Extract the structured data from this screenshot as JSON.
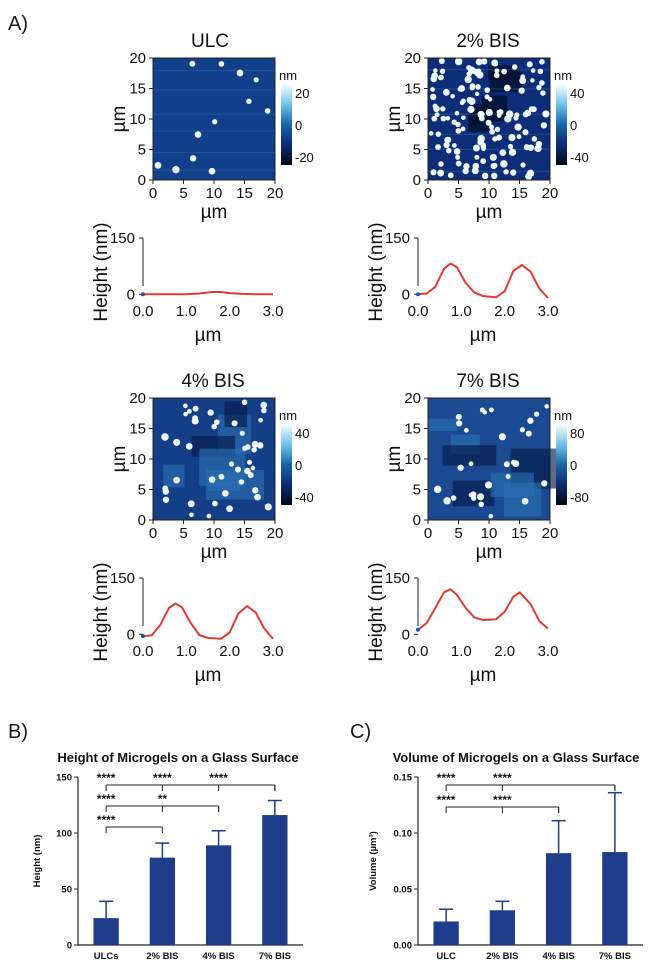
{
  "panel_letters": {
    "a": "A)",
    "b": "B)",
    "c": "C)"
  },
  "afm_panels": [
    {
      "title": "ULC",
      "x_ticks": [
        "0",
        "5",
        "10",
        "15",
        "20"
      ],
      "y_ticks": [
        "0",
        "5",
        "10",
        "15",
        "20"
      ],
      "x_label": "µm",
      "y_label": "µm",
      "colorbar_unit": "nm",
      "colorbar_ticks": [
        "20",
        "0",
        "-20"
      ],
      "profile": {
        "y_label": "Height (nm)",
        "x_label": "µm",
        "x_ticks": [
          "0.0",
          "1.0",
          "2.0",
          "3.0"
        ],
        "y_ticks": [
          "150",
          "0"
        ],
        "x": [
          0,
          0.5,
          1.0,
          1.3,
          1.6,
          1.8,
          2.0,
          2.3,
          2.6,
          3.0
        ],
        "y": [
          0,
          0,
          0,
          2,
          6,
          6,
          3,
          1,
          0,
          0
        ]
      }
    },
    {
      "title": "2% BIS",
      "x_ticks": [
        "0",
        "5",
        "10",
        "15",
        "20"
      ],
      "y_ticks": [
        "0",
        "5",
        "10",
        "15",
        "20"
      ],
      "x_label": "µm",
      "y_label": "µm",
      "colorbar_unit": "nm",
      "colorbar_ticks": [
        "40",
        "0",
        "-40"
      ],
      "profile": {
        "y_label": "Height (nm)",
        "x_label": "µm",
        "x_ticks": [
          "0.0",
          "1.0",
          "2.0",
          "3.0"
        ],
        "y_ticks": [
          "150",
          "0"
        ],
        "x": [
          0,
          0.2,
          0.4,
          0.6,
          0.75,
          0.9,
          1.1,
          1.3,
          1.5,
          1.8,
          2.0,
          2.2,
          2.4,
          2.6,
          2.8,
          3.0
        ],
        "y": [
          0,
          2,
          20,
          68,
          82,
          72,
          30,
          5,
          -5,
          -8,
          8,
          62,
          78,
          60,
          15,
          -10
        ]
      }
    },
    {
      "title": "4% BIS",
      "x_ticks": [
        "0",
        "5",
        "10",
        "15",
        "20"
      ],
      "y_ticks": [
        "0",
        "5",
        "10",
        "15",
        "20"
      ],
      "x_label": "µm",
      "y_label": "µm",
      "colorbar_unit": "nm",
      "colorbar_ticks": [
        "40",
        "0",
        "-40"
      ],
      "profile": {
        "y_label": "Height (nm)",
        "x_label": "µm",
        "x_ticks": [
          "0.0",
          "1.0",
          "2.0",
          "3.0"
        ],
        "y_ticks": [
          "150",
          "0"
        ],
        "x": [
          0,
          0.2,
          0.4,
          0.6,
          0.75,
          0.9,
          1.1,
          1.3,
          1.5,
          1.8,
          2.0,
          2.2,
          2.4,
          2.6,
          2.8,
          3.0
        ],
        "y": [
          -5,
          -3,
          25,
          70,
          82,
          72,
          30,
          -2,
          -10,
          -12,
          5,
          55,
          75,
          58,
          15,
          -12
        ]
      }
    },
    {
      "title": "7% BIS",
      "x_ticks": [
        "0",
        "5",
        "10",
        "15",
        "20"
      ],
      "y_ticks": [
        "0",
        "5",
        "10",
        "15",
        "20"
      ],
      "x_label": "µm",
      "y_label": "µm",
      "colorbar_unit": "nm",
      "colorbar_ticks": [
        "80",
        "0",
        "-80"
      ],
      "profile": {
        "y_label": "Height (nm)",
        "x_label": "µm",
        "x_ticks": [
          "0.0",
          "1.0",
          "2.0",
          "3.0"
        ],
        "y_ticks": [
          "150",
          "0"
        ],
        "x": [
          0,
          0.2,
          0.4,
          0.6,
          0.75,
          0.9,
          1.1,
          1.3,
          1.5,
          1.8,
          2.0,
          2.2,
          2.35,
          2.6,
          2.8,
          3.0
        ],
        "y": [
          12,
          30,
          70,
          112,
          120,
          105,
          70,
          45,
          38,
          40,
          60,
          100,
          112,
          80,
          35,
          15
        ]
      }
    }
  ],
  "chart_data": [
    {
      "type": "bar",
      "title": "Height of Microgels on a Glass Surface",
      "categories": [
        "ULCs",
        "2% BIS",
        "4% BIS",
        "7% BIS"
      ],
      "values": [
        24,
        78,
        89,
        116
      ],
      "errors": [
        15,
        13,
        13,
        13
      ],
      "ylabel": "Height (nm)",
      "xlabel": "",
      "ylim": [
        0,
        150
      ],
      "y_ticks": [
        "0",
        "50",
        "100",
        "150"
      ],
      "significance": [
        {
          "from": 0,
          "to": 3,
          "label": "****",
          "label_at": 0
        },
        {
          "from": 0,
          "to": 2,
          "label": "****",
          "label_at": 0
        },
        {
          "from": 0,
          "to": 1,
          "label": "****",
          "label_at": 0
        },
        {
          "from": 1,
          "to": 3,
          "label": "****",
          "label_at": 1
        },
        {
          "from": 1,
          "to": 2,
          "label": "**",
          "label_at": 1
        },
        {
          "from": 2,
          "to": 3,
          "label": "****",
          "label_at": 2
        }
      ]
    },
    {
      "type": "bar",
      "title": "Volume of Microgels on a Glass Surface",
      "categories": [
        "ULC",
        "2% BIS",
        "4% BIS",
        "7% BIS"
      ],
      "values": [
        0.021,
        0.031,
        0.082,
        0.083
      ],
      "errors": [
        0.011,
        0.008,
        0.029,
        0.053
      ],
      "ylabel": "Volume (µm³)",
      "xlabel": "",
      "ylim": [
        0,
        0.15
      ],
      "y_ticks": [
        "0.00",
        "0.05",
        "0.10",
        "0.15"
      ],
      "significance": [
        {
          "from": 0,
          "to": 3,
          "label": "****",
          "label_at": 0
        },
        {
          "from": 1,
          "to": 3,
          "label": "****",
          "label_at": 1
        },
        {
          "from": 0,
          "to": 2,
          "label": "****",
          "label_at": 0
        },
        {
          "from": 1,
          "to": 2,
          "label": "****",
          "label_at": 1
        }
      ]
    }
  ],
  "colors": {
    "bar": "#1f3d8a",
    "profile_line": "#e23b35",
    "afm_dark": "#0b1f56",
    "afm_light": "#e8f6ff"
  }
}
